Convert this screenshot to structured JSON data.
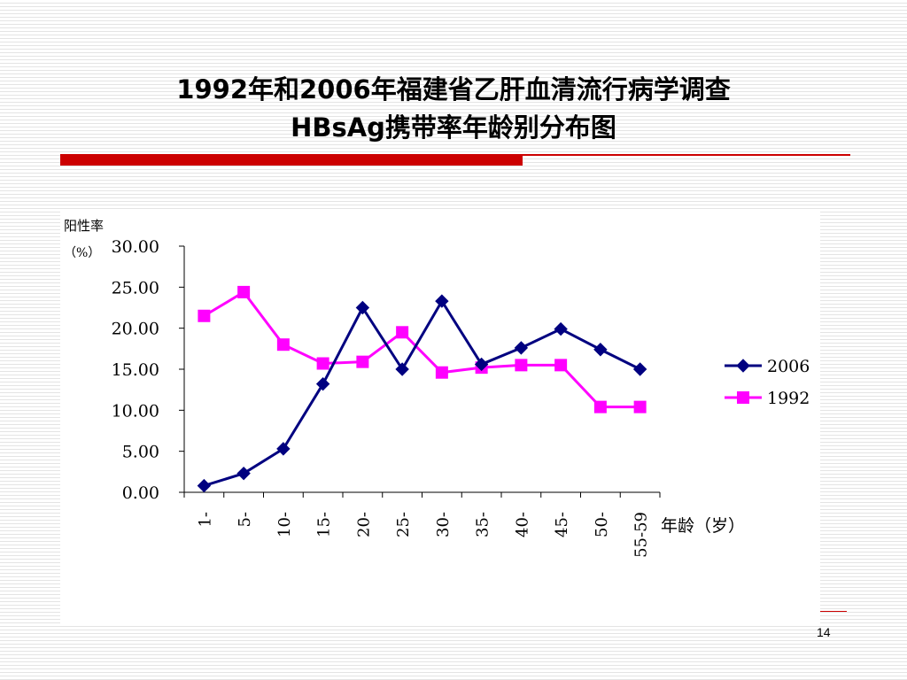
{
  "slide": {
    "title_line1": "1992年和2006年福建省乙肝血清流行病学调查",
    "title_line2": "HBsAg携带率年龄别分布图",
    "page_number": "14",
    "accent_color": "#cc0000"
  },
  "chart_data": {
    "type": "line",
    "ylabel_line1": "阳性率",
    "ylabel_line2": "（%）",
    "xlabel": "年龄（岁）",
    "ylim": [
      0,
      30
    ],
    "yticks": [
      "0.00",
      "5.00",
      "10.00",
      "15.00",
      "20.00",
      "25.00",
      "30.00"
    ],
    "categories": [
      "1-",
      "5-",
      "10-",
      "15-",
      "20-",
      "25-",
      "30-",
      "35-",
      "40-",
      "45-",
      "50-",
      "55-59"
    ],
    "legend_position": "right",
    "grid": false,
    "series": [
      {
        "name": "2006",
        "color": "#000080",
        "marker": "diamond",
        "values": [
          0.8,
          2.3,
          5.3,
          13.2,
          22.5,
          15.0,
          23.3,
          15.6,
          17.6,
          19.9,
          17.4,
          15.0
        ]
      },
      {
        "name": "1992",
        "color": "#ff00ff",
        "marker": "square",
        "values": [
          21.5,
          24.4,
          18.0,
          15.7,
          15.9,
          19.5,
          14.6,
          15.2,
          15.5,
          15.5,
          10.4,
          10.4
        ]
      }
    ]
  }
}
